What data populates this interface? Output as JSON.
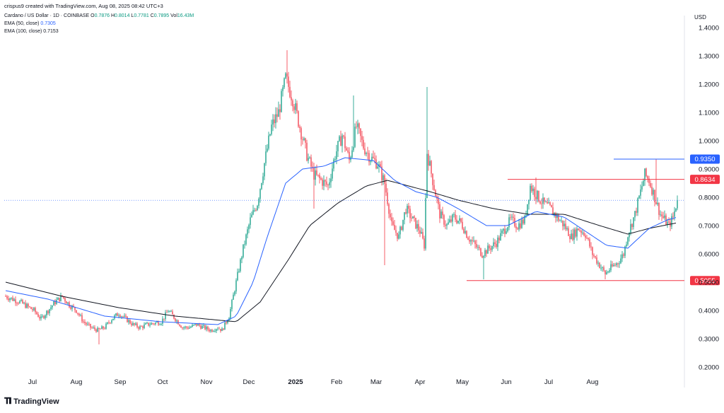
{
  "credit": "crispus9 created with TradingView.com, Aug 08, 2025 08:42 UTC+3",
  "symbol_line": {
    "name": "Cardano / US Dollar · 1D · COINBASE",
    "o_label": "O",
    "o": "0.7876",
    "h_label": "H",
    "h": "0.8014",
    "l_label": "L",
    "l": "0.7781",
    "c_label": "C",
    "c": "0.7895",
    "vol_label": "Vol",
    "vol": "16.43M"
  },
  "indicators": [
    {
      "label": "EMA (50, close)",
      "value": "0.7305",
      "color": "#2962ff"
    },
    {
      "label": "EMA (100, close)",
      "value": "0.7153",
      "color": "#131722"
    }
  ],
  "logo_text": "TradingView",
  "chart_data": {
    "type": "candlestick",
    "currency_label": "USD",
    "ylim": [
      0.18,
      1.42
    ],
    "y_ticks": [
      "0.2000",
      "0.3000",
      "0.4000",
      "0.5000",
      "0.6000",
      "0.7000",
      "0.8000",
      "0.9000",
      "1.0000",
      "1.1000",
      "1.2000",
      "1.3000",
      "1.4000"
    ],
    "x_ticks": [
      "Jul",
      "Aug",
      "Sep",
      "Oct",
      "Nov",
      "Dec",
      "2025",
      "Feb",
      "Mar",
      "Apr",
      "May",
      "Jun",
      "Jul",
      "Aug"
    ],
    "price_anchors": [
      [
        0,
        0.45
      ],
      [
        10,
        0.43
      ],
      [
        20,
        0.4
      ],
      [
        25,
        0.37
      ],
      [
        30,
        0.4
      ],
      [
        35,
        0.43
      ],
      [
        40,
        0.45
      ],
      [
        45,
        0.42
      ],
      [
        50,
        0.4
      ],
      [
        55,
        0.36
      ],
      [
        60,
        0.34
      ],
      [
        65,
        0.33
      ],
      [
        70,
        0.34
      ],
      [
        75,
        0.37
      ],
      [
        80,
        0.39
      ],
      [
        85,
        0.37
      ],
      [
        90,
        0.35
      ],
      [
        95,
        0.34
      ],
      [
        100,
        0.35
      ],
      [
        110,
        0.36
      ],
      [
        115,
        0.4
      ],
      [
        120,
        0.37
      ],
      [
        125,
        0.34
      ],
      [
        130,
        0.34
      ],
      [
        135,
        0.35
      ],
      [
        140,
        0.34
      ],
      [
        145,
        0.33
      ],
      [
        150,
        0.34
      ],
      [
        153,
        0.33
      ],
      [
        158,
        0.38
      ],
      [
        163,
        0.5
      ],
      [
        168,
        0.62
      ],
      [
        173,
        0.72
      ],
      [
        178,
        0.78
      ],
      [
        183,
        0.92
      ],
      [
        188,
        1.05
      ],
      [
        193,
        1.1
      ],
      [
        198,
        1.22
      ],
      [
        203,
        1.15
      ],
      [
        208,
        1.05
      ],
      [
        213,
        0.95
      ],
      [
        218,
        0.88
      ],
      [
        223,
        0.86
      ],
      [
        228,
        0.84
      ],
      [
        233,
        0.95
      ],
      [
        238,
        1.02
      ],
      [
        243,
        0.93
      ],
      [
        248,
        1.05
      ],
      [
        253,
        0.98
      ],
      [
        258,
        0.94
      ],
      [
        263,
        0.92
      ],
      [
        268,
        0.85
      ],
      [
        273,
        0.7
      ],
      [
        278,
        0.66
      ],
      [
        283,
        0.76
      ],
      [
        288,
        0.72
      ],
      [
        293,
        0.68
      ],
      [
        296,
        0.63
      ],
      [
        298,
        0.96
      ],
      [
        302,
        0.86
      ],
      [
        307,
        0.74
      ],
      [
        312,
        0.7
      ],
      [
        317,
        0.73
      ],
      [
        322,
        0.71
      ],
      [
        327,
        0.66
      ],
      [
        332,
        0.63
      ],
      [
        337,
        0.6
      ],
      [
        342,
        0.62
      ],
      [
        347,
        0.64
      ],
      [
        352,
        0.68
      ],
      [
        357,
        0.72
      ],
      [
        362,
        0.7
      ],
      [
        367,
        0.72
      ],
      [
        371,
        0.84
      ],
      [
        375,
        0.81
      ],
      [
        380,
        0.78
      ],
      [
        385,
        0.76
      ],
      [
        390,
        0.73
      ],
      [
        395,
        0.7
      ],
      [
        400,
        0.66
      ],
      [
        405,
        0.69
      ],
      [
        410,
        0.67
      ],
      [
        415,
        0.6
      ],
      [
        420,
        0.56
      ],
      [
        424,
        0.53
      ],
      [
        428,
        0.55
      ],
      [
        433,
        0.57
      ],
      [
        437,
        0.6
      ],
      [
        440,
        0.67
      ],
      [
        445,
        0.74
      ],
      [
        449,
        0.82
      ],
      [
        452,
        0.88
      ],
      [
        455,
        0.86
      ],
      [
        459,
        0.8
      ],
      [
        463,
        0.74
      ],
      [
        466,
        0.72
      ],
      [
        469,
        0.7
      ],
      [
        472,
        0.73
      ],
      [
        475,
        0.79
      ]
    ],
    "special_wicks": [
      {
        "day": 199,
        "high": 1.32
      },
      {
        "day": 218,
        "low": 0.76
      },
      {
        "day": 246,
        "high": 1.16
      },
      {
        "day": 268,
        "low": 0.56
      },
      {
        "day": 298,
        "high": 1.19,
        "low": 0.8
      },
      {
        "day": 338,
        "low": 0.51
      },
      {
        "day": 375,
        "high": 0.87
      },
      {
        "day": 424,
        "low": 0.51
      },
      {
        "day": 460,
        "high": 0.935
      },
      {
        "day": 66,
        "low": 0.28
      }
    ],
    "ema50_anchors": [
      [
        0,
        0.47
      ],
      [
        30,
        0.44
      ],
      [
        70,
        0.38
      ],
      [
        110,
        0.36
      ],
      [
        150,
        0.35
      ],
      [
        163,
        0.38
      ],
      [
        175,
        0.5
      ],
      [
        185,
        0.66
      ],
      [
        198,
        0.85
      ],
      [
        210,
        0.9
      ],
      [
        225,
        0.91
      ],
      [
        240,
        0.94
      ],
      [
        260,
        0.93
      ],
      [
        275,
        0.86
      ],
      [
        290,
        0.82
      ],
      [
        305,
        0.8
      ],
      [
        320,
        0.76
      ],
      [
        340,
        0.7
      ],
      [
        355,
        0.7
      ],
      [
        375,
        0.75
      ],
      [
        395,
        0.73
      ],
      [
        410,
        0.68
      ],
      [
        425,
        0.63
      ],
      [
        440,
        0.62
      ],
      [
        455,
        0.69
      ],
      [
        468,
        0.72
      ],
      [
        475,
        0.73
      ]
    ],
    "ema100_anchors": [
      [
        0,
        0.5
      ],
      [
        40,
        0.45
      ],
      [
        80,
        0.41
      ],
      [
        120,
        0.38
      ],
      [
        163,
        0.36
      ],
      [
        180,
        0.43
      ],
      [
        200,
        0.58
      ],
      [
        215,
        0.7
      ],
      [
        235,
        0.78
      ],
      [
        255,
        0.84
      ],
      [
        270,
        0.86
      ],
      [
        285,
        0.84
      ],
      [
        300,
        0.82
      ],
      [
        320,
        0.79
      ],
      [
        345,
        0.76
      ],
      [
        370,
        0.74
      ],
      [
        395,
        0.74
      ],
      [
        420,
        0.7
      ],
      [
        440,
        0.67
      ],
      [
        455,
        0.69
      ],
      [
        475,
        0.71
      ]
    ],
    "last_price": 0.7895,
    "levels": [
      {
        "label": "0.9350",
        "value": 0.935,
        "color": "#2962ff",
        "from_day": 430
      },
      {
        "label": "0.8634",
        "value": 0.8634,
        "color": "#f23645",
        "from_day": 355
      },
      {
        "label": "0.5055",
        "value": 0.5055,
        "color": "#f23645",
        "from_day": 326
      }
    ],
    "colors": {
      "up": "#089981",
      "down": "#f23645",
      "ema50": "#2962ff",
      "ema100": "#131722"
    }
  }
}
